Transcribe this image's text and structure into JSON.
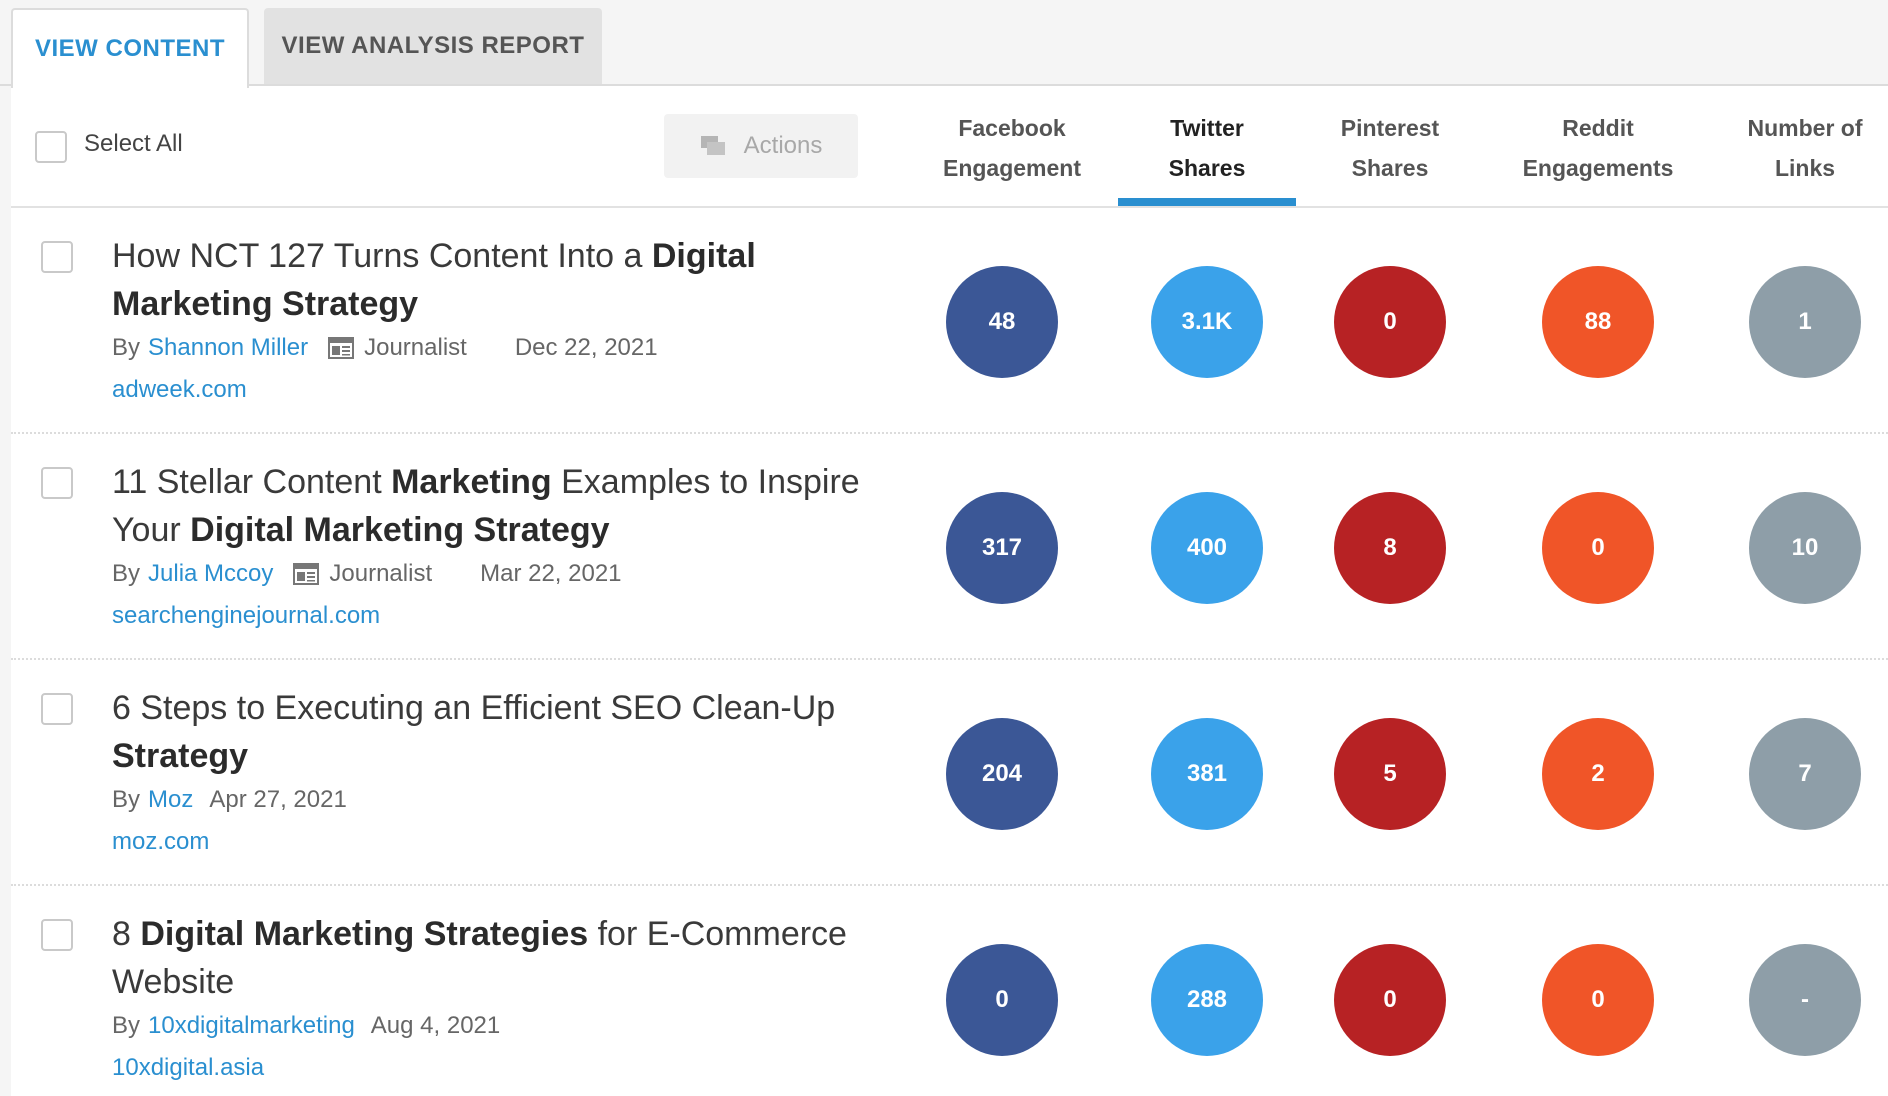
{
  "tabs": {
    "view_content": "VIEW CONTENT",
    "view_analysis_report": "VIEW ANALYSIS REPORT"
  },
  "toolbar": {
    "select_all": "Select All",
    "actions": "Actions"
  },
  "columns": {
    "facebook_1": "Facebook",
    "facebook_2": "Engagement",
    "twitter_1": "Twitter",
    "twitter_2": "Shares",
    "pinterest_1": "Pinterest",
    "pinterest_2": "Shares",
    "reddit_1": "Reddit",
    "reddit_2": "Engagements",
    "links_1": "Number of",
    "links_2": "Links",
    "active_sort": "Twitter Shares"
  },
  "colors": {
    "accent": "#2a8fd0",
    "facebook": "#3b5796",
    "twitter": "#3aa2ea",
    "pinterest": "#b72224",
    "reddit": "#f05528",
    "links": "#8e9ea8"
  },
  "articles": [
    {
      "title_html": "How NCT 127 Turns Content Into a <b>Digital Marketing Strategy</b>",
      "by": "By",
      "author": "Shannon Miller",
      "role": "Journalist",
      "date": "Dec 22, 2021",
      "domain": "adweek.com",
      "facebook": "48",
      "twitter": "3.1K",
      "pinterest": "0",
      "reddit": "88",
      "links": "1"
    },
    {
      "title_html": "11 Stellar Content <b>Marketing</b> Examples to Inspire Your <b>Digital Marketing Strategy</b>",
      "by": "By",
      "author": "Julia Mccoy",
      "role": "Journalist",
      "date": "Mar 22, 2021",
      "domain": "searchenginejournal.com",
      "facebook": "317",
      "twitter": "400",
      "pinterest": "8",
      "reddit": "0",
      "links": "10"
    },
    {
      "title_html": "6 Steps to Executing an Efficient SEO Clean-Up <b>Strategy</b>",
      "by": "By",
      "author": "Moz",
      "role": "",
      "date": "Apr 27, 2021",
      "domain": "moz.com",
      "facebook": "204",
      "twitter": "381",
      "pinterest": "5",
      "reddit": "2",
      "links": "7"
    },
    {
      "title_html": "8 <b>Digital Marketing Strategies</b> for E-Commerce Website",
      "by": "By",
      "author": "10xdigitalmarketing",
      "role": "",
      "date": "Aug 4, 2021",
      "domain": "10xdigital.asia",
      "facebook": "0",
      "twitter": "288",
      "pinterest": "0",
      "reddit": "0",
      "links": "-"
    }
  ]
}
